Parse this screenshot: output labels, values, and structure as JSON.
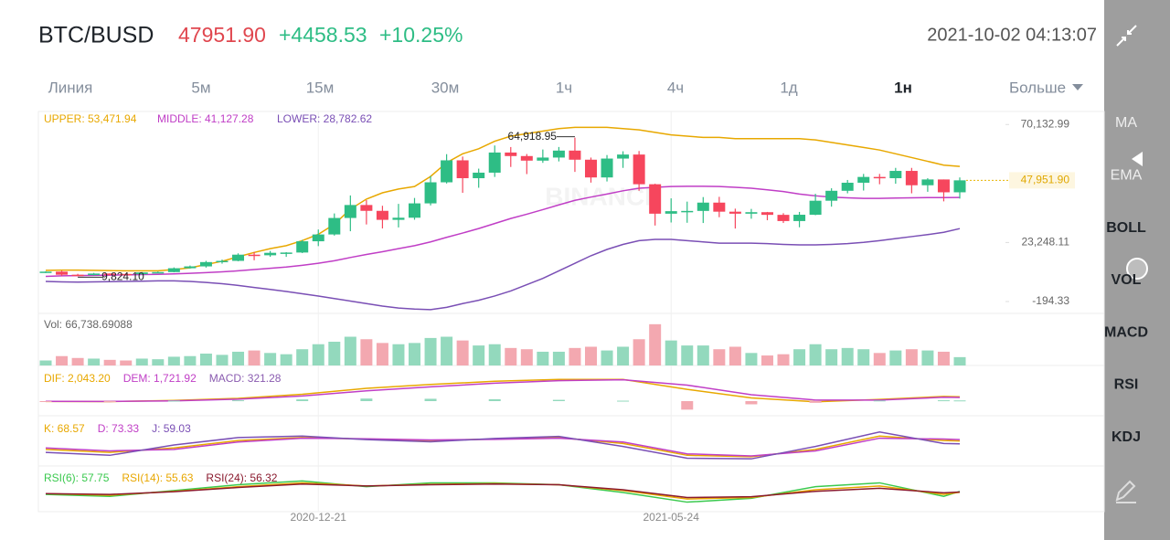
{
  "header": {
    "pair": "BTC/BUSD",
    "price": "47951.90",
    "change": "+4458.53",
    "change_pct": "+10.25%",
    "datetime": "2021-10-02 04:13:07"
  },
  "intervals": [
    "Линия",
    "5м",
    "15м",
    "30м",
    "1ч",
    "4ч",
    "1д",
    "1н",
    "Больше"
  ],
  "active_interval": "1н",
  "side_menu": [
    {
      "label": "MA",
      "active": false
    },
    {
      "label": "EMA",
      "active": false
    },
    {
      "label": "BOLL",
      "active": true
    },
    {
      "label": "VOL",
      "active": true
    },
    {
      "label": "MACD",
      "active": true
    },
    {
      "label": "RSI",
      "active": true
    },
    {
      "label": "KDJ",
      "active": true
    }
  ],
  "watermark": "BINANCE",
  "chart_data": [
    {
      "type": "candlestick",
      "up_color": "#2ebd85",
      "down_color": "#f6465d",
      "categories": [
        null,
        null,
        null,
        null,
        null,
        null,
        null,
        null,
        null,
        null,
        null,
        null,
        null,
        null,
        null,
        null,
        null,
        "2020-12-21",
        null,
        null,
        null,
        null,
        null,
        null,
        null,
        null,
        null,
        null,
        null,
        null,
        null,
        null,
        null,
        null,
        null,
        null,
        null,
        null,
        null,
        "2021-05-24",
        null,
        null,
        null,
        null,
        null,
        null,
        null,
        null,
        null,
        null,
        null,
        null,
        null,
        null,
        null,
        null,
        null,
        null
      ],
      "open": [
        11650,
        11680,
        10450,
        10320,
        10920,
        10780,
        10660,
        11370,
        11500,
        13030,
        13760,
        15480,
        15960,
        18420,
        18180,
        19160,
        19270,
        23740,
        26450,
        33000,
        38150,
        35830,
        32260,
        33100,
        38800,
        47170,
        55900,
        48800,
        51000,
        59000,
        57600,
        55780,
        57000,
        59770,
        56150,
        49100,
        56600,
        58200,
        46400,
        34700,
        35700,
        35800,
        39100,
        35500,
        34700,
        35300,
        34240,
        31780,
        34280,
        39850,
        43800,
        47000,
        49300,
        48800,
        51700,
        46000,
        48300,
        43200
      ],
      "high": [
        11800,
        12090,
        10800,
        11180,
        10990,
        10950,
        11490,
        11720,
        13350,
        14100,
        15960,
        16480,
        18950,
        19500,
        19900,
        19420,
        24300,
        28420,
        34800,
        41950,
        40100,
        37850,
        38600,
        40950,
        49700,
        58350,
        57400,
        52600,
        61800,
        61180,
        58400,
        60200,
        61200,
        64918.95,
        57000,
        58000,
        59500,
        59600,
        46600,
        40800,
        39500,
        41300,
        41400,
        36700,
        36600,
        35400,
        34900,
        35400,
        42600,
        44800,
        48100,
        50500,
        50500,
        52900,
        52900,
        48800,
        48300,
        49100
      ],
      "low": [
        11130,
        10000,
        9824.1,
        10200,
        10140,
        10380,
        10520,
        11170,
        11400,
        12950,
        13290,
        14840,
        15800,
        16200,
        17570,
        17550,
        19050,
        21820,
        26000,
        27730,
        30420,
        28850,
        29240,
        32300,
        37990,
        46700,
        43000,
        45000,
        49300,
        53270,
        50430,
        54900,
        55470,
        51300,
        47050,
        47500,
        52900,
        43800,
        30000,
        31200,
        31100,
        31000,
        33300,
        28800,
        32700,
        32100,
        31000,
        29300,
        34100,
        37500,
        42800,
        43900,
        46400,
        46600,
        42800,
        43400,
        39600,
        40700
      ],
      "close": [
        11680,
        10450,
        10320,
        10920,
        10780,
        10660,
        11370,
        11500,
        13030,
        13760,
        15480,
        15960,
        18420,
        18180,
        19160,
        19270,
        23740,
        26450,
        33000,
        38150,
        35830,
        32260,
        33100,
        38800,
        47170,
        55900,
        48800,
        51000,
        59000,
        57600,
        55780,
        57000,
        59770,
        56150,
        49100,
        56600,
        58200,
        46400,
        34700,
        35700,
        35800,
        39100,
        35500,
        34700,
        35300,
        34240,
        31780,
        34280,
        39850,
        43800,
        47000,
        49300,
        48800,
        51700,
        46000,
        48300,
        43200,
        47951.9
      ],
      "overlays": [
        {
          "name": "UPPER: 53,471.94",
          "color": "#e8a800",
          "values": [
            12200,
            12300,
            12300,
            12200,
            12100,
            12000,
            12000,
            12000,
            12500,
            13200,
            14500,
            15800,
            17600,
            19300,
            20800,
            22000,
            24000,
            26500,
            30500,
            36500,
            40500,
            43000,
            44500,
            45500,
            49500,
            55000,
            58500,
            60500,
            63500,
            65500,
            66500,
            67500,
            68500,
            69000,
            69000,
            69000,
            68500,
            68000,
            67000,
            66000,
            65500,
            65000,
            65000,
            64500,
            64500,
            64500,
            64500,
            64500,
            64000,
            63000,
            62000,
            61000,
            60000,
            58500,
            57000,
            55500,
            54000,
            53471.94
          ]
        },
        {
          "name": "MIDDLE: 41,127.28",
          "color": "#c03ec6",
          "values": [
            9800,
            10000,
            10100,
            10200,
            10300,
            10400,
            10500,
            10600,
            10800,
            11000,
            11300,
            11600,
            12000,
            12500,
            13000,
            13500,
            14200,
            15000,
            16000,
            17300,
            18500,
            19600,
            20800,
            22000,
            23500,
            25300,
            27000,
            28800,
            30800,
            32800,
            34500,
            36300,
            38200,
            40000,
            41300,
            42500,
            43800,
            44800,
            45200,
            45500,
            45600,
            45600,
            45500,
            45200,
            44800,
            44200,
            43500,
            42500,
            41800,
            41300,
            41000,
            40800,
            40800,
            40900,
            41000,
            41100,
            41100,
            41127.28
          ]
        },
        {
          "name": "LOWER: 28,782.62",
          "color": "#7a4fb5",
          "values": [
            7800,
            7600,
            7500,
            7600,
            7700,
            7800,
            7900,
            8000,
            8000,
            7800,
            7400,
            6900,
            6200,
            5400,
            4600,
            3800,
            2900,
            2000,
            1000,
            0,
            -1000,
            -2000,
            -2800,
            -3200,
            -3400,
            -2500,
            -1000,
            300,
            2000,
            4000,
            6500,
            9000,
            12000,
            15000,
            18000,
            20500,
            22500,
            24000,
            24500,
            24500,
            24000,
            23500,
            23000,
            23000,
            23000,
            22800,
            22500,
            22300,
            22300,
            22500,
            22800,
            23300,
            24000,
            24800,
            25600,
            26400,
            27300,
            28782.62
          ]
        }
      ],
      "ylim": [
        -4913,
        75310
      ],
      "yticks": [
        {
          "value": 70132.99,
          "label": "70,132.99"
        },
        {
          "value": 23248.11,
          "label": "23,248.11"
        },
        {
          "value": -194.33,
          "label": "-194.33"
        }
      ],
      "last_price": {
        "value": 47951.9,
        "label": "47,951.90"
      },
      "annotations": [
        {
          "value": 64918.95,
          "label": "64,918.95"
        },
        {
          "value": 9824.1,
          "label": "9,824.10"
        }
      ]
    },
    {
      "type": "bar",
      "legend": "Vol: 66,738.69088",
      "up_color": "#93d9bd",
      "down_color": "#f3a8b0",
      "values": [
        40000,
        75000,
        60000,
        55000,
        45000,
        40000,
        55000,
        50000,
        70000,
        75000,
        95000,
        85000,
        110000,
        120000,
        100000,
        90000,
        130000,
        170000,
        190000,
        230000,
        210000,
        180000,
        170000,
        180000,
        220000,
        230000,
        200000,
        160000,
        170000,
        140000,
        130000,
        110000,
        110000,
        140000,
        150000,
        120000,
        150000,
        210000,
        330000,
        200000,
        160000,
        160000,
        130000,
        150000,
        100000,
        80000,
        90000,
        130000,
        170000,
        130000,
        140000,
        130000,
        100000,
        120000,
        130000,
        120000,
        110000,
        66738.69088
      ],
      "ylim": [
        0,
        380000
      ]
    },
    {
      "type": "line",
      "x": [
        0,
        4,
        8,
        12,
        16,
        20,
        24,
        28,
        32,
        36,
        40,
        44,
        48,
        52,
        56,
        57
      ],
      "xlim": [
        0,
        57
      ],
      "ylim": [
        -6000,
        12000
      ],
      "series": [
        {
          "name": "DIF: 2,043.20",
          "color": "#e8a800",
          "values": [
            -150,
            -200,
            300,
            1300,
            3200,
            6000,
            7800,
            9300,
            10200,
            10200,
            5500,
            1500,
            -300,
            800,
            2200,
            2043.2
          ]
        },
        {
          "name": "DEM: 1,721.92",
          "color": "#c03ec6",
          "values": [
            -100,
            -150,
            100,
            900,
            2400,
            4800,
            6700,
            8400,
            9600,
            10000,
            7500,
            3000,
            500,
            500,
            1800,
            1721.92
          ]
        },
        {
          "name": "MACD: 321.28",
          "color": "#8a5cb0",
          "style": "bar",
          "values": [
            -50,
            -50,
            200,
            400,
            800,
            1200,
            1100,
            900,
            600,
            200,
            -4000,
            -1500,
            -800,
            300,
            400,
            321.28
          ]
        }
      ]
    },
    {
      "type": "line",
      "x": [
        0,
        4,
        8,
        12,
        16,
        20,
        24,
        28,
        32,
        36,
        40,
        44,
        48,
        52,
        56,
        57
      ],
      "xlim": [
        0,
        57
      ],
      "ylim": [
        -10,
        120
      ],
      "series": [
        {
          "name": "K: 68.57",
          "color": "#e8a800",
          "values": [
            40,
            30,
            45,
            70,
            80,
            75,
            70,
            75,
            80,
            60,
            20,
            15,
            40,
            85,
            70,
            68.57
          ]
        },
        {
          "name": "D: 73.33",
          "color": "#c03ec6",
          "values": [
            45,
            35,
            40,
            65,
            78,
            76,
            72,
            74,
            78,
            65,
            25,
            18,
            35,
            78,
            75,
            73.33
          ]
        },
        {
          "name": "J: 59.03",
          "color": "#7a4fb5",
          "values": [
            30,
            20,
            55,
            80,
            85,
            73,
            66,
            77,
            84,
            50,
            10,
            8,
            50,
            99,
            60,
            59.03
          ]
        }
      ]
    },
    {
      "type": "line",
      "x": [
        0,
        4,
        8,
        12,
        16,
        20,
        24,
        28,
        32,
        36,
        40,
        44,
        48,
        52,
        56,
        57
      ],
      "xlim": [
        0,
        57
      ],
      "ylim": [
        10,
        100
      ],
      "series": [
        {
          "name": "RSI(6): 57.75",
          "color": "#3ac94e",
          "values": [
            50,
            45,
            60,
            75,
            85,
            70,
            80,
            80,
            75,
            55,
            30,
            40,
            70,
            80,
            45,
            57.75
          ]
        },
        {
          "name": "RSI(14): 55.63",
          "color": "#e8a700",
          "values": [
            52,
            48,
            58,
            70,
            80,
            72,
            76,
            78,
            75,
            60,
            38,
            42,
            62,
            72,
            50,
            55.63
          ]
        },
        {
          "name": "RSI(24): 56.32",
          "color": "#8a1a2e",
          "values": [
            52,
            50,
            57,
            68,
            77,
            72,
            75,
            77,
            75,
            62,
            42,
            44,
            58,
            66,
            54,
            56.32
          ]
        }
      ]
    }
  ]
}
